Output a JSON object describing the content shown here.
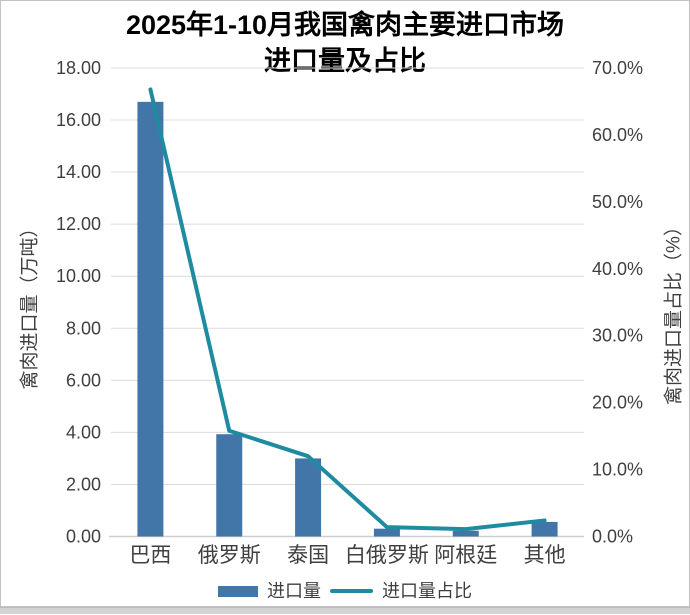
{
  "chart_data": {
    "type": "combo",
    "title": "2025年1-10月我国禽肉主要进口市场\n进口量及占比",
    "categories": [
      "巴西",
      "俄罗斯",
      "泰国",
      "白俄罗斯",
      "阿根廷",
      "其他"
    ],
    "series": [
      {
        "name": "进口量",
        "type": "bar",
        "axis": "left",
        "values": [
          16.7,
          3.93,
          3.0,
          0.3,
          0.22,
          0.56
        ],
        "color": "#4376A8"
      },
      {
        "name": "进口量占比",
        "type": "line",
        "axis": "right",
        "values": [
          66.8,
          15.8,
          12.0,
          1.4,
          1.1,
          2.4
        ],
        "color": "#1F8BA0"
      }
    ],
    "left_axis": {
      "title": "禽肉进口量（万吨）",
      "min": 0,
      "max": 18,
      "step": 2,
      "tick_labels": [
        "0.00",
        "2.00",
        "4.00",
        "6.00",
        "8.00",
        "10.00",
        "12.00",
        "14.00",
        "16.00",
        "18.00"
      ]
    },
    "right_axis": {
      "title": "禽肉进口量占比（%）",
      "min": 0,
      "max": 70,
      "step": 10,
      "tick_labels": [
        "0.0%",
        "10.0%",
        "20.0%",
        "30.0%",
        "40.0%",
        "50.0%",
        "60.0%",
        "70.0%"
      ]
    },
    "legend": [
      "进口量",
      "进口量占比"
    ],
    "grid": true,
    "legend_position": "bottom",
    "colors": {
      "bar": "#4376A8",
      "line": "#1F8BA0",
      "gridline": "#DCDCDC",
      "axis_line": "#CFCFCF",
      "text": "#3F3F3F",
      "title": "#000000"
    }
  }
}
